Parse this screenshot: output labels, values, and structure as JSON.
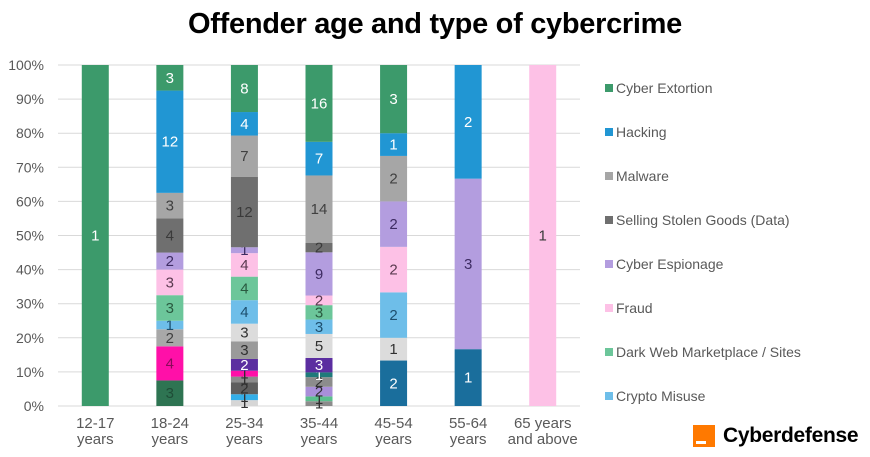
{
  "chart_data": {
    "type": "bar",
    "stacked": true,
    "normalized": true,
    "title": "Offender age and type of cybercrime",
    "xlabel": "",
    "ylabel": "",
    "ylim": [
      0,
      100
    ],
    "yticks": [
      "0%",
      "10%",
      "20%",
      "30%",
      "40%",
      "50%",
      "60%",
      "70%",
      "80%",
      "90%",
      "100%"
    ],
    "grid": true,
    "legend_position": "right",
    "categories": [
      "12-17 years",
      "18-24 years",
      "25-34 years",
      "35-44 years",
      "45-54 years",
      "55-64 years",
      "65 years and above"
    ],
    "category_lines": [
      [
        "12-17",
        "years"
      ],
      [
        "18-24",
        "years"
      ],
      [
        "25-34",
        "years"
      ],
      [
        "35-44",
        "years"
      ],
      [
        "45-54",
        "years"
      ],
      [
        "55-64",
        "years"
      ],
      [
        "65 years",
        "and above"
      ]
    ],
    "legend": [
      {
        "name": "Cyber Extortion",
        "color": "#3c9a6b"
      },
      {
        "name": "Hacking",
        "color": "#2196d3"
      },
      {
        "name": "Malware",
        "color": "#a6a6a6"
      },
      {
        "name": "Selling Stolen Goods (Data)",
        "color": "#6f6f6f"
      },
      {
        "name": "Cyber Espionage",
        "color": "#b39ddf"
      },
      {
        "name": "Fraud",
        "color": "#fdc1e6"
      },
      {
        "name": "Dark Web Marketplace / Sites",
        "color": "#6cc69a"
      },
      {
        "name": "Crypto Misuse",
        "color": "#6ebee9"
      }
    ],
    "stacks_bottom_to_top": [
      [
        {
          "series": "Cyber Extortion",
          "value": 1,
          "color": "#3c9a6b",
          "text": "#ffffff"
        }
      ],
      [
        {
          "series": "",
          "value": 3,
          "color": "#2e7452",
          "text": "#1f4d37"
        },
        {
          "series": "",
          "value": 4,
          "color": "#ff10a8",
          "text": "#8a0a5a"
        },
        {
          "series": "",
          "value": 2,
          "color": "#a8a8a8",
          "text": "#404040"
        },
        {
          "series": "Crypto Misuse",
          "value": 1,
          "color": "#6ebee9",
          "text": "#1d4f6e"
        },
        {
          "series": "Dark Web Marketplace / Sites",
          "value": 3,
          "color": "#6cc69a",
          "text": "#2a5a40"
        },
        {
          "series": "Fraud",
          "value": 3,
          "color": "#fdc1e6",
          "text": "#5a3a50"
        },
        {
          "series": "Cyber Espionage",
          "value": 2,
          "color": "#b39ddf",
          "text": "#3e2c63"
        },
        {
          "series": "Selling Stolen Goods (Data)",
          "value": 4,
          "color": "#6f6f6f",
          "text": "#3a3a3a"
        },
        {
          "series": "Malware",
          "value": 3,
          "color": "#a6a6a6",
          "text": "#404040"
        },
        {
          "series": "Hacking",
          "value": 12,
          "color": "#2196d3",
          "text": "#ffffff"
        },
        {
          "series": "Cyber Extortion",
          "value": 3,
          "color": "#3c9a6b",
          "text": "#ffffff"
        }
      ],
      [
        {
          "series": "",
          "value": 1,
          "color": "#d6d6d6",
          "text": "#303030"
        },
        {
          "series": "",
          "value": 1,
          "color": "#33aee8",
          "text": "#303030"
        },
        {
          "series": "",
          "value": 2,
          "color": "#5e5e5e",
          "text": "#303030"
        },
        {
          "series": "",
          "value": 1,
          "color": "#8c8c8c",
          "text": "#303030"
        },
        {
          "series": "",
          "value": 1,
          "color": "#ff10a8",
          "text": "#303030"
        },
        {
          "series": "",
          "value": 2,
          "color": "#5b2ea0",
          "text": "#ffffff"
        },
        {
          "series": "",
          "value": 3,
          "color": "#9a9a9a",
          "text": "#303030"
        },
        {
          "series": "",
          "value": 3,
          "color": "#dcdcdc",
          "text": "#303030"
        },
        {
          "series": "Crypto Misuse",
          "value": 4,
          "color": "#6ebee9",
          "text": "#1d4f6e"
        },
        {
          "series": "Dark Web Marketplace / Sites",
          "value": 4,
          "color": "#6cc69a",
          "text": "#2a5a40"
        },
        {
          "series": "Fraud",
          "value": 4,
          "color": "#fdc1e6",
          "text": "#5a3a50"
        },
        {
          "series": "Cyber Espionage",
          "value": 1,
          "color": "#b39ddf",
          "text": "#3e2c63"
        },
        {
          "series": "Selling Stolen Goods (Data)",
          "value": 12,
          "color": "#6f6f6f",
          "text": "#3a3a3a"
        },
        {
          "series": "Malware",
          "value": 7,
          "color": "#a6a6a6",
          "text": "#404040"
        },
        {
          "series": "Hacking",
          "value": 4,
          "color": "#2196d3",
          "text": "#ffffff"
        },
        {
          "series": "Cyber Extortion",
          "value": 8,
          "color": "#3c9a6b",
          "text": "#ffffff"
        }
      ],
      [
        {
          "series": "",
          "value": 1,
          "color": "#8c8c8c",
          "text": "#303030"
        },
        {
          "series": "",
          "value": 1,
          "color": "#5bbf8d",
          "text": "#303030"
        },
        {
          "series": "",
          "value": 2,
          "color": "#a98fd9",
          "text": "#303030"
        },
        {
          "series": "",
          "value": 2,
          "color": "#8c8c8c",
          "text": "#303030"
        },
        {
          "series": "",
          "value": 1,
          "color": "#1f7a7a",
          "text": "#ffffff"
        },
        {
          "series": "",
          "value": 3,
          "color": "#5b2ea0",
          "text": "#ffffff"
        },
        {
          "series": "",
          "value": 5,
          "color": "#dcdcdc",
          "text": "#303030"
        },
        {
          "series": "Crypto Misuse",
          "value": 3,
          "color": "#6ebee9",
          "text": "#1d4f6e"
        },
        {
          "series": "Dark Web Marketplace / Sites",
          "value": 3,
          "color": "#6cc69a",
          "text": "#2a5a40"
        },
        {
          "series": "Fraud",
          "value": 2,
          "color": "#fdc1e6",
          "text": "#5a3a50"
        },
        {
          "series": "Cyber Espionage",
          "value": 9,
          "color": "#b39ddf",
          "text": "#3e2c63"
        },
        {
          "series": "Selling Stolen Goods (Data)",
          "value": 2,
          "color": "#6f6f6f",
          "text": "#3a3a3a"
        },
        {
          "series": "Malware",
          "value": 14,
          "color": "#a6a6a6",
          "text": "#404040"
        },
        {
          "series": "Hacking",
          "value": 7,
          "color": "#2196d3",
          "text": "#ffffff"
        },
        {
          "series": "Cyber Extortion",
          "value": 16,
          "color": "#3c9a6b",
          "text": "#ffffff"
        }
      ],
      [
        {
          "series": "",
          "value": 2,
          "color": "#1a6e9c",
          "text": "#ffffff"
        },
        {
          "series": "",
          "value": 1,
          "color": "#dcdcdc",
          "text": "#303030"
        },
        {
          "series": "Crypto Misuse",
          "value": 2,
          "color": "#6ebee9",
          "text": "#1d4f6e"
        },
        {
          "series": "Fraud",
          "value": 2,
          "color": "#fdc1e6",
          "text": "#5a3a50"
        },
        {
          "series": "Cyber Espionage",
          "value": 2,
          "color": "#b39ddf",
          "text": "#3e2c63"
        },
        {
          "series": "Malware",
          "value": 2,
          "color": "#a6a6a6",
          "text": "#404040"
        },
        {
          "series": "Hacking",
          "value": 1,
          "color": "#2196d3",
          "text": "#ffffff"
        },
        {
          "series": "Cyber Extortion",
          "value": 3,
          "color": "#3c9a6b",
          "text": "#ffffff"
        }
      ],
      [
        {
          "series": "",
          "value": 1,
          "color": "#1a6e9c",
          "text": "#ffffff"
        },
        {
          "series": "Cyber Espionage",
          "value": 3,
          "color": "#b39ddf",
          "text": "#3e2c63"
        },
        {
          "series": "Hacking",
          "value": 2,
          "color": "#2196d3",
          "text": "#ffffff"
        }
      ],
      [
        {
          "series": "Fraud",
          "value": 1,
          "color": "#fdc1e6",
          "text": "#3a3a3a"
        }
      ]
    ]
  },
  "branding": {
    "logo_text": "Cyberdefense",
    "logo_color": "#ff7900"
  }
}
